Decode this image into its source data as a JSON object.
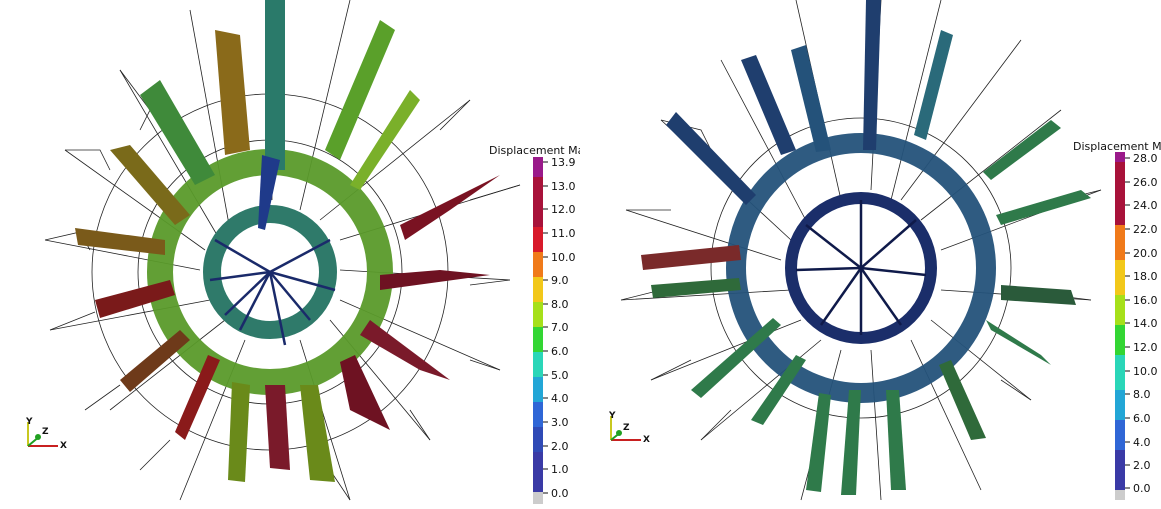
{
  "panels": [
    {
      "id": "left",
      "colorbar": {
        "title": "Displacement Mag",
        "max_label": "13.9",
        "ticks": [
          "13.0",
          "12.0",
          "11.0",
          "10.0",
          "9.0",
          "8.0",
          "7.0",
          "6.0",
          "5.0",
          "4.0",
          "3.0",
          "2.0",
          "1.0",
          "0.0"
        ]
      },
      "axes": {
        "x": "X",
        "y": "Y",
        "z": "Z"
      }
    },
    {
      "id": "right",
      "colorbar": {
        "title": "Displacement Ma",
        "max_label": "28.0",
        "ticks": [
          "26.0",
          "24.0",
          "22.0",
          "20.0",
          "18.0",
          "16.0",
          "14.0",
          "12.0",
          "10.0",
          "8.0",
          "6.0",
          "4.0",
          "2.0",
          "0.0"
        ]
      },
      "axes": {
        "x": "X",
        "y": "Y",
        "z": "Z"
      }
    }
  ],
  "colormap": [
    "#3a3aa6",
    "#2f66d6",
    "#22a6d6",
    "#2ad6b8",
    "#33d633",
    "#a6e01a",
    "#f2c81a",
    "#f07a1a",
    "#d81a2a",
    "#a8123a",
    "#9a1a8a"
  ],
  "colors": {
    "left_dominant": "#5a9a2a",
    "left_hot": "#6e1222",
    "right_dominant": "#1f3e6e",
    "right_mid": "#2f7a4a"
  }
}
